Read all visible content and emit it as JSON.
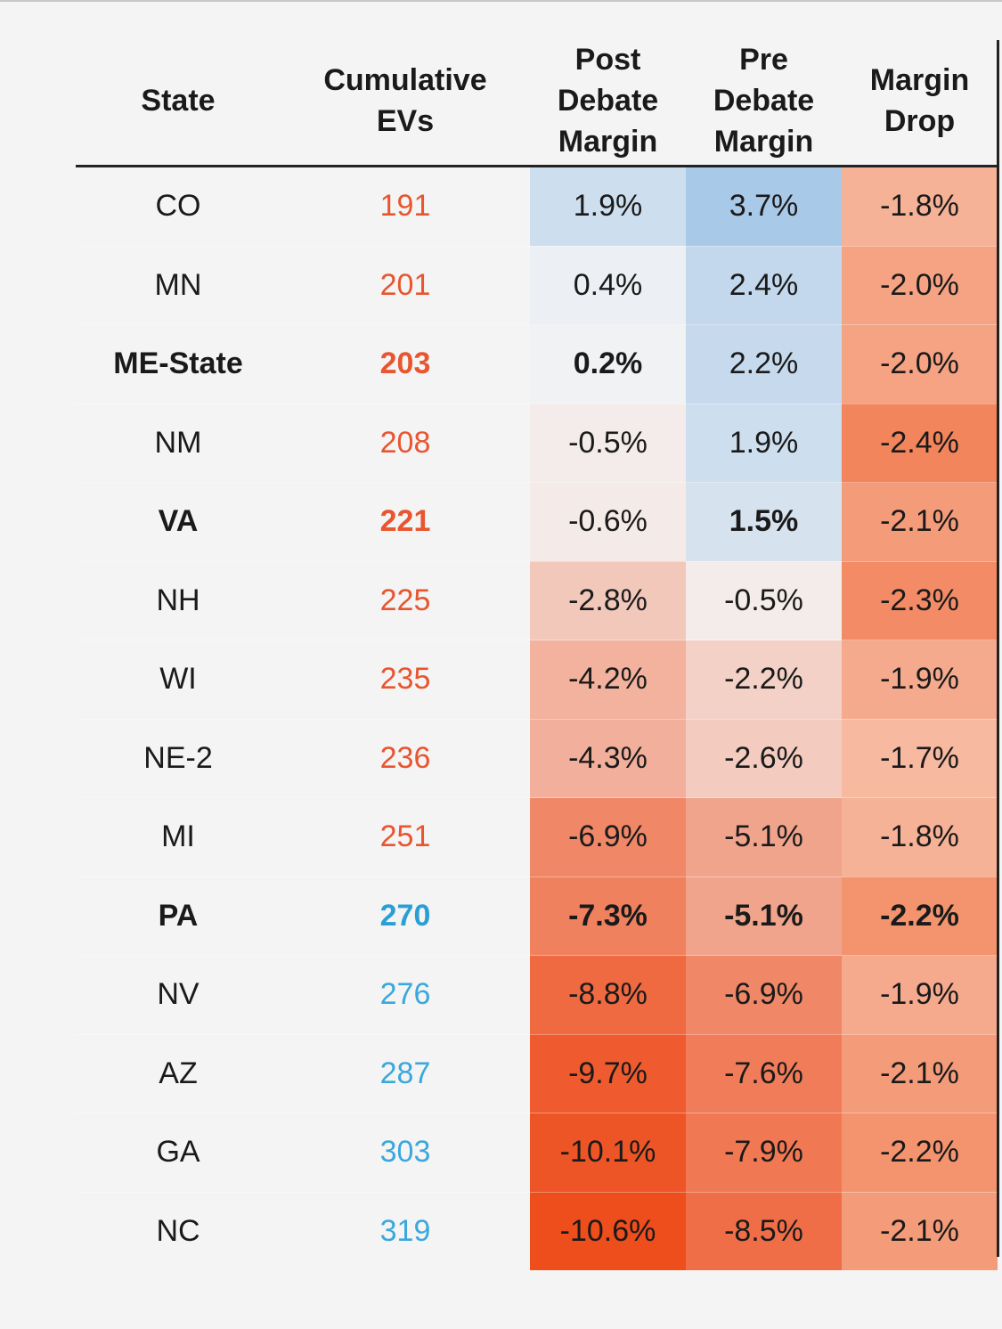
{
  "chart_data": {
    "type": "table",
    "columns": [
      "State",
      "Cumulative EVs",
      "Post Debate Margin",
      "Pre Debate Margin",
      "Margin Drop"
    ],
    "header_lines": [
      [
        "State"
      ],
      [
        "Cumulative",
        "EVs"
      ],
      [
        "Post",
        "Debate",
        "Margin"
      ],
      [
        "Pre",
        "Debate",
        "Margin"
      ],
      [
        "Margin",
        "Drop"
      ]
    ],
    "rows": [
      {
        "state": "CO",
        "ev": "191",
        "post": "1.9%",
        "pre": "3.7%",
        "drop": "-1.8%",
        "ev_color": "#e8552f",
        "bold": []
      },
      {
        "state": "MN",
        "ev": "201",
        "post": "0.4%",
        "pre": "2.4%",
        "drop": "-2.0%",
        "ev_color": "#e8552f",
        "bold": []
      },
      {
        "state": "ME-State",
        "ev": "203",
        "post": "0.2%",
        "pre": "2.2%",
        "drop": "-2.0%",
        "ev_color": "#e8552f",
        "bold": [
          "state",
          "ev",
          "post"
        ]
      },
      {
        "state": "NM",
        "ev": "208",
        "post": "-0.5%",
        "pre": "1.9%",
        "drop": "-2.4%",
        "ev_color": "#e8552f",
        "bold": []
      },
      {
        "state": "VA",
        "ev": "221",
        "post": "-0.6%",
        "pre": "1.5%",
        "drop": "-2.1%",
        "ev_color": "#e8552f",
        "bold": [
          "state",
          "ev",
          "pre"
        ]
      },
      {
        "state": "NH",
        "ev": "225",
        "post": "-2.8%",
        "pre": "-0.5%",
        "drop": "-2.3%",
        "ev_color": "#e8552f",
        "bold": []
      },
      {
        "state": "WI",
        "ev": "235",
        "post": "-4.2%",
        "pre": "-2.2%",
        "drop": "-1.9%",
        "ev_color": "#e8552f",
        "bold": []
      },
      {
        "state": "NE-2",
        "ev": "236",
        "post": "-4.3%",
        "pre": "-2.6%",
        "drop": "-1.7%",
        "ev_color": "#e8552f",
        "bold": []
      },
      {
        "state": "MI",
        "ev": "251",
        "post": "-6.9%",
        "pre": "-5.1%",
        "drop": "-1.8%",
        "ev_color": "#e8552f",
        "bold": []
      },
      {
        "state": "PA",
        "ev": "270",
        "post": "-7.3%",
        "pre": "-5.1%",
        "drop": "-2.2%",
        "ev_color": "#2a9fd6",
        "bold": [
          "state",
          "ev",
          "post",
          "pre",
          "drop"
        ]
      },
      {
        "state": "NV",
        "ev": "276",
        "post": "-8.8%",
        "pre": "-6.9%",
        "drop": "-1.9%",
        "ev_color": "#3aa8dc",
        "bold": []
      },
      {
        "state": "AZ",
        "ev": "287",
        "post": "-9.7%",
        "pre": "-7.6%",
        "drop": "-2.1%",
        "ev_color": "#3aa8dc",
        "bold": []
      },
      {
        "state": "GA",
        "ev": "303",
        "post": "-10.1%",
        "pre": "-7.9%",
        "drop": "-2.2%",
        "ev_color": "#3aa8dc",
        "bold": []
      },
      {
        "state": "NC",
        "ev": "319",
        "post": "-10.6%",
        "pre": "-8.5%",
        "drop": "-2.1%",
        "ev_color": "#3aa8dc",
        "bold": []
      }
    ],
    "colors": {
      "positive": "#a9c9e8",
      "negative": "#ee4d1c",
      "neutral": "#f4f4f4",
      "drop_light": "#f7b9a0",
      "drop_dark": "#f2855c"
    }
  }
}
